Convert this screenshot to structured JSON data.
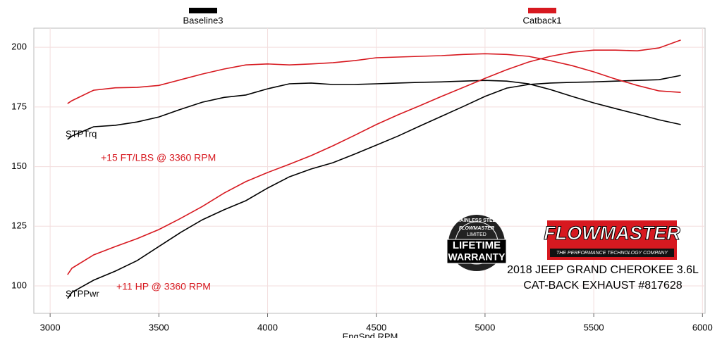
{
  "chart_data": {
    "type": "line",
    "x_label": "EngSpd RPM",
    "x": [
      3080,
      3100,
      3200,
      3300,
      3400,
      3500,
      3600,
      3700,
      3800,
      3900,
      4000,
      4100,
      4200,
      4300,
      4400,
      4500,
      4600,
      4700,
      4800,
      4900,
      5000,
      5100,
      5200,
      5300,
      5400,
      5500,
      5600,
      5700,
      5800,
      5900
    ],
    "series": [
      {
        "name": "Baseline3",
        "color": "#000000",
        "torque": [
          161.4,
          162.8,
          166.7,
          167.3,
          168.7,
          170.8,
          174,
          177,
          179,
          180,
          182.6,
          184.7,
          185,
          184.4,
          184.4,
          184.7,
          185,
          185.3,
          185.5,
          185.8,
          186.1,
          185.8,
          184.7,
          182.3,
          179.4,
          176.7,
          174.3,
          172,
          169.6,
          167.6
        ],
        "power": [
          94.7,
          97.3,
          102.4,
          106.2,
          110.6,
          116.5,
          122.4,
          127.7,
          131.9,
          135.7,
          141,
          145.7,
          149,
          151.6,
          155.2,
          159,
          162.8,
          167,
          171.1,
          175.2,
          179.4,
          182.9,
          184.4,
          185,
          185.3,
          185.5,
          185.8,
          186.1,
          186.4,
          188.2
        ]
      },
      {
        "name": "Catback1",
        "color": "#d71920",
        "torque": [
          176.4,
          177.6,
          182,
          183,
          183.2,
          184,
          186.4,
          188.8,
          190.9,
          192.6,
          193,
          192.6,
          193,
          193.5,
          194.4,
          195.6,
          195.9,
          196.2,
          196.5,
          197,
          197.3,
          197,
          196.2,
          194.4,
          192.3,
          189.7,
          186.7,
          184,
          181.7,
          181.1
        ],
        "power": [
          104.7,
          107.4,
          113,
          116.5,
          119.8,
          123.6,
          128.3,
          133.3,
          138.9,
          143.7,
          147.5,
          151,
          154.6,
          158.7,
          163.1,
          167.6,
          171.7,
          175.5,
          179.4,
          183.2,
          187,
          190.6,
          193.8,
          196.2,
          197.9,
          198.8,
          198.8,
          198.5,
          199.7,
          203
        ]
      }
    ],
    "xlim": [
      2925,
      6012
    ],
    "xticks": [
      3000,
      3500,
      4000,
      4500,
      5000,
      5500,
      6000
    ],
    "ylim": [
      88.5,
      208
    ],
    "yticks": [
      100,
      125,
      150,
      175,
      200
    ],
    "grid": true,
    "annotations": {
      "torque_label": "STPTrq",
      "power_label": "STPPwr",
      "torque_gain": "+15 FT/LBS @ 3360 RPM",
      "power_gain": "+11 HP @ 3360 RPM"
    },
    "logo": {
      "brand": "FLOWMASTER",
      "tagline": "THE PERFORMANCE TECHNOLOGY COMPANY"
    },
    "badge": {
      "ring": "STAINLESS STEEL",
      "brand": "FLOWMASTER",
      "limited": "LIMITED",
      "line1": "LIFETIME",
      "line2": "WARRANTY"
    },
    "vehicle": "2018 JEEP GRAND CHEROKEE 3.6L",
    "product": "CAT-BACK EXHAUST #817628"
  }
}
